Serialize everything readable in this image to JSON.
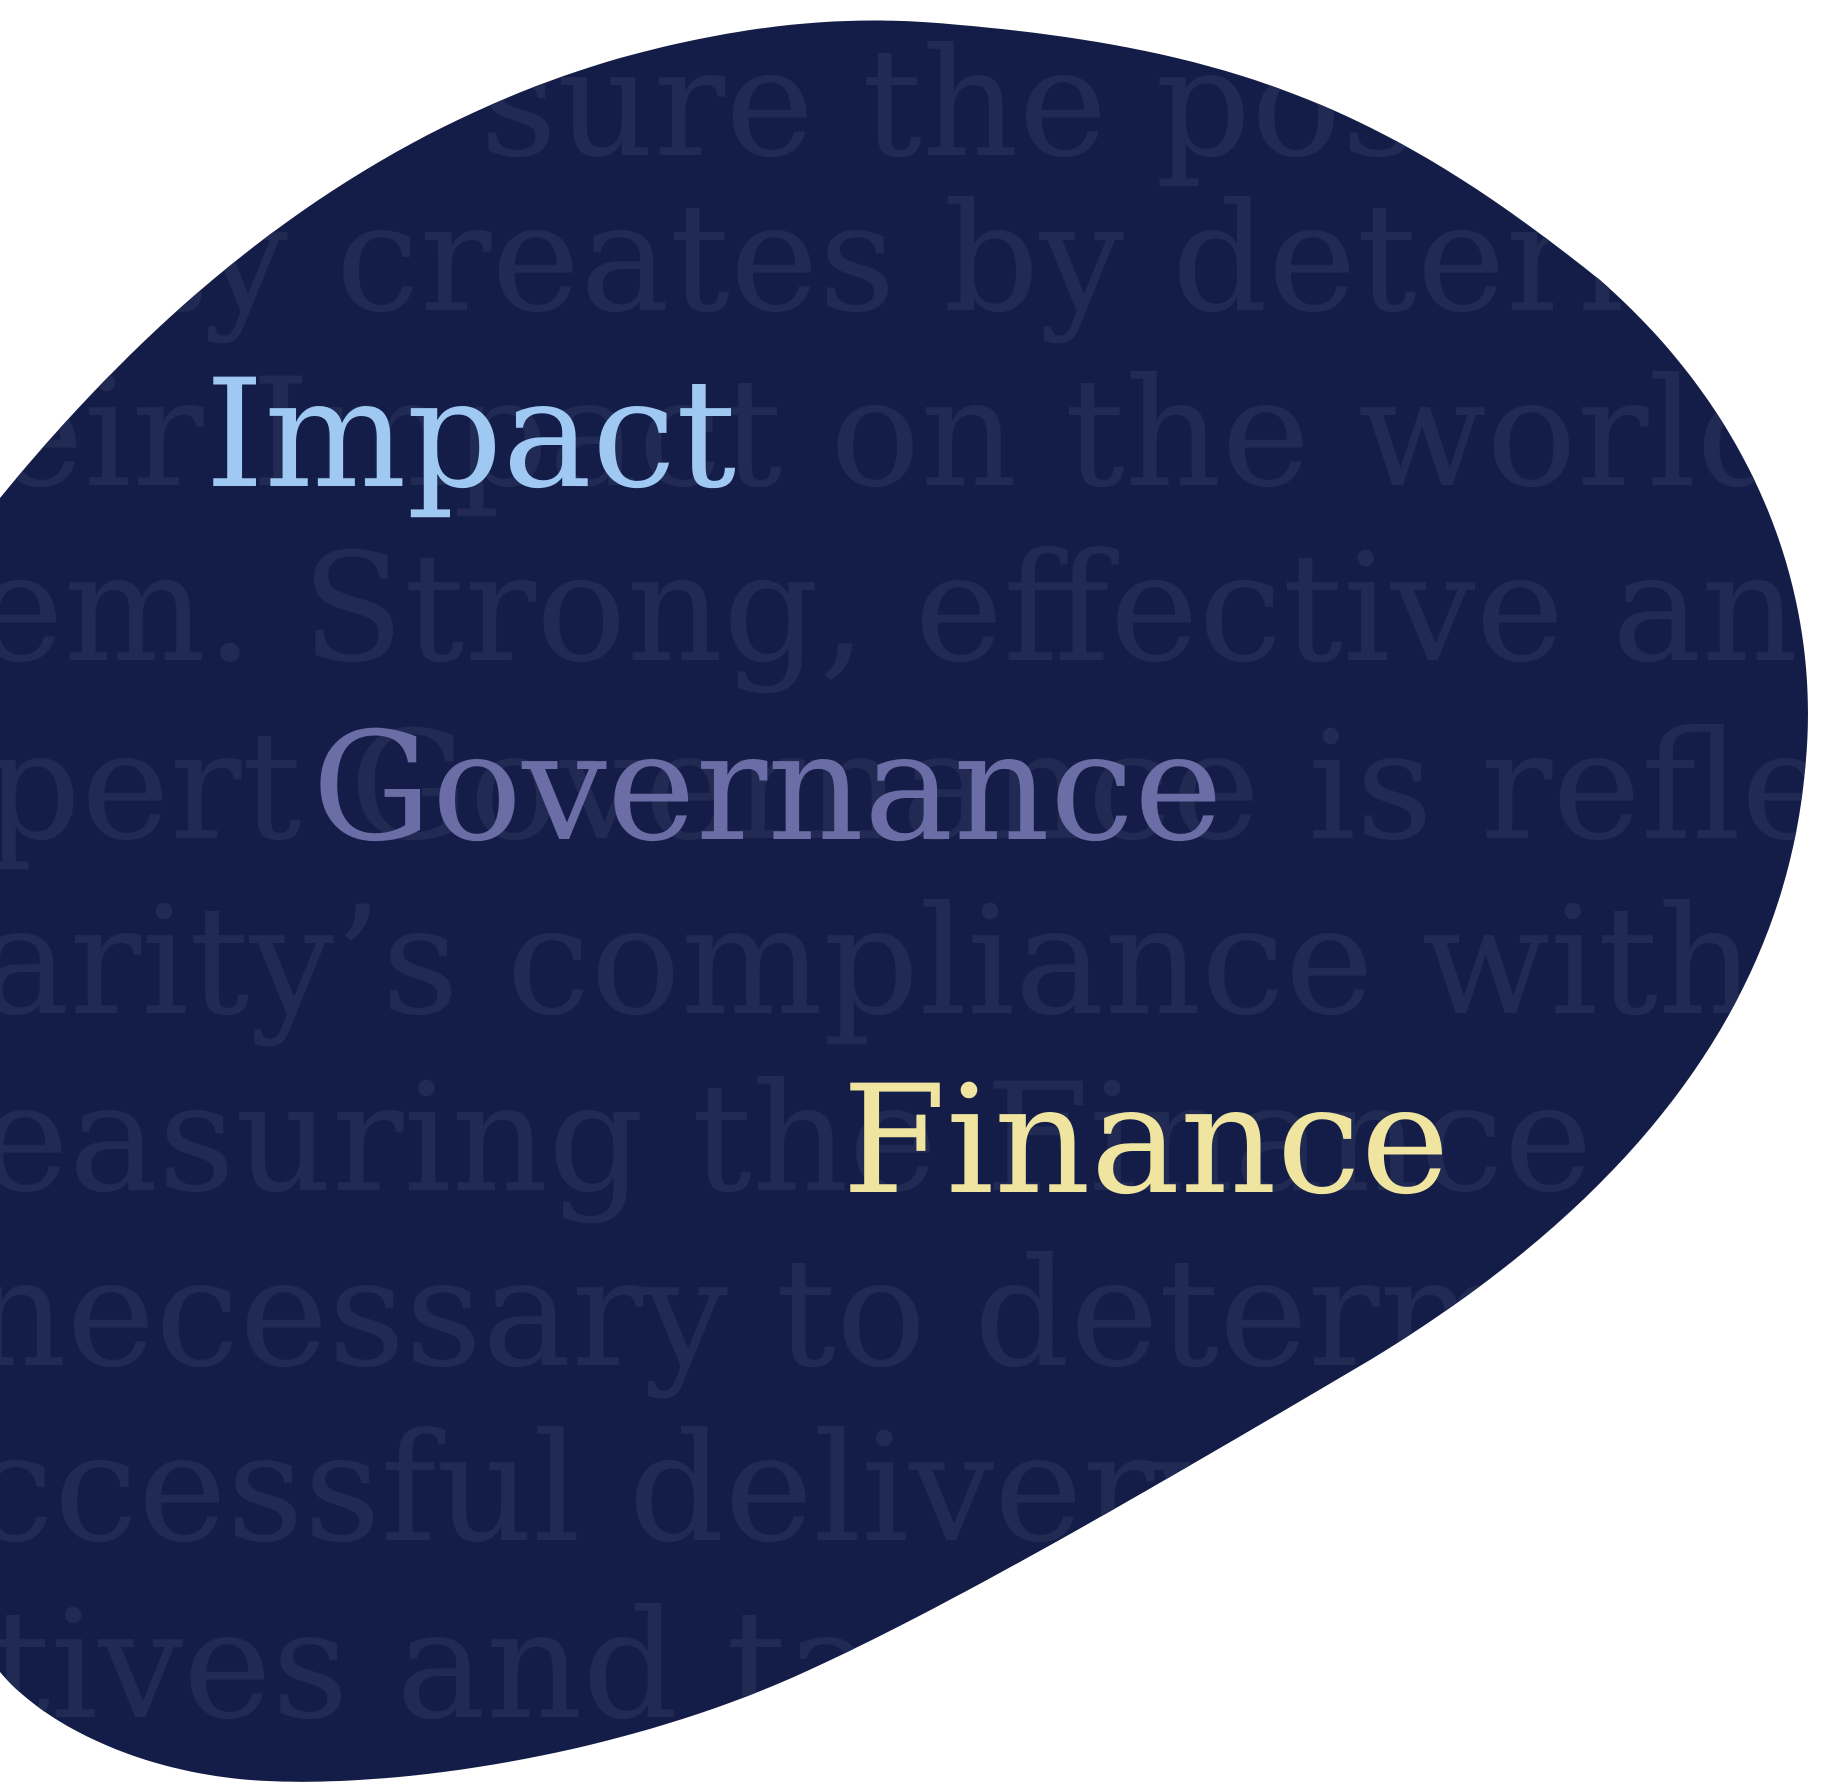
{
  "background_lines": [
    "sure the posit",
    "ity creates by determ",
    "eir Impact on the world ar",
    "em. Strong, effective and",
    "pert Governance is reflecte",
    "arity’s compliance with the",
    "easuring the Finance of a",
    "necessary to determine",
    "ccessful delivery of",
    "tives and ta"
  ],
  "highlights": {
    "impact": "Impact",
    "governance": "Governance",
    "finance": "Finance"
  },
  "colors": {
    "blob": "#141d47",
    "background_text": "#202a52",
    "impact": "#9fc8f2",
    "governance": "#6b6ea6",
    "finance": "#efe4a0",
    "page": "#ffffff"
  }
}
